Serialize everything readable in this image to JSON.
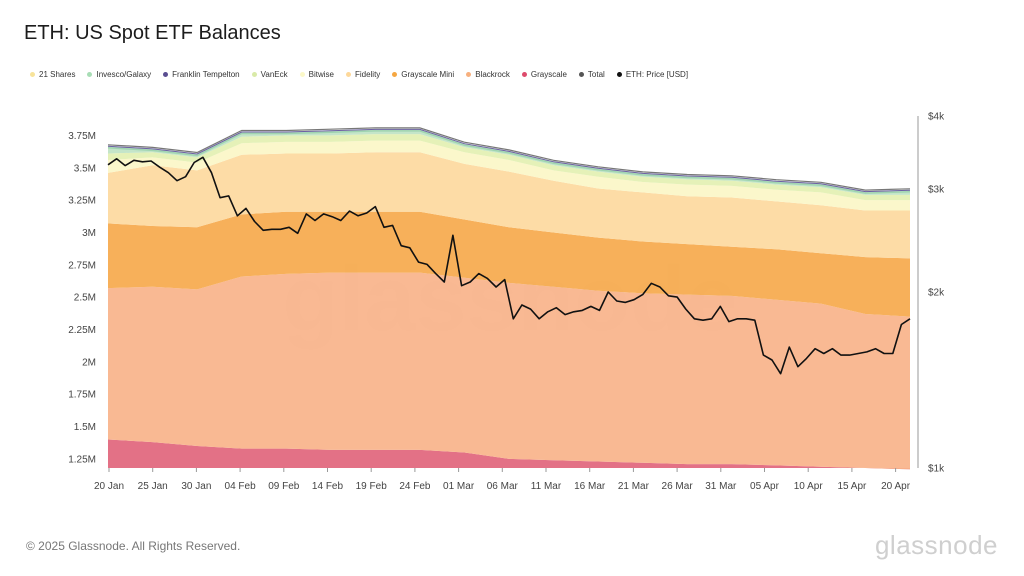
{
  "title": "ETH: US Spot ETF Balances",
  "footer": {
    "copyright": "© 2025 Glassnode. All Rights Reserved.",
    "brand": "glassnode",
    "watermark": "glassnode"
  },
  "legend": [
    {
      "label": "21 Shares",
      "color": "#f7e39a"
    },
    {
      "label": "Invesco/Galaxy",
      "color": "#a8ddb5"
    },
    {
      "label": "Franklin Tempelton",
      "color": "#5a4e91"
    },
    {
      "label": "VanEck",
      "color": "#d9eaa8"
    },
    {
      "label": "Bitwise",
      "color": "#fbf8c8"
    },
    {
      "label": "Fidelity",
      "color": "#fdd89a"
    },
    {
      "label": "Grayscale Mini",
      "color": "#f5a742"
    },
    {
      "label": "Blackrock",
      "color": "#f7b07e"
    },
    {
      "label": "Grayscale",
      "color": "#dd4b6c"
    },
    {
      "label": "Total",
      "color": "#555555"
    },
    {
      "label": "ETH: Price [USD]",
      "color": "#111111"
    }
  ],
  "chart_data": {
    "type": "area",
    "title": "ETH: US Spot ETF Balances",
    "x_labels": [
      "20 Jan",
      "25 Jan",
      "30 Jan",
      "04 Feb",
      "09 Feb",
      "14 Feb",
      "19 Feb",
      "24 Feb",
      "01 Mar",
      "06 Mar",
      "11 Mar",
      "16 Mar",
      "21 Mar",
      "26 Mar",
      "31 Mar",
      "05 Apr",
      "10 Apr",
      "15 Apr",
      "20 Apr"
    ],
    "y_left": {
      "ticks": [
        "1.25M",
        "1.5M",
        "1.75M",
        "2M",
        "2.25M",
        "2.5M",
        "2.75M",
        "3M",
        "3.25M",
        "3.5M",
        "3.75M"
      ],
      "min": 1.18,
      "max": 3.9,
      "unit": "M ETH"
    },
    "y_right": {
      "ticks": [
        "$1k",
        "$2k",
        "$3k",
        "$4k"
      ],
      "scale": "log",
      "min": 1000,
      "max": 4000
    },
    "keyframes": [
      {
        "date": "20 Jan",
        "grayscale": 1.4,
        "blackrock": 2.57,
        "grayscale_mini": 3.07,
        "fidelity": 3.46,
        "bitwise": 3.56,
        "vaneck": 3.61,
        "total": 3.67
      },
      {
        "date": "25 Jan",
        "grayscale": 1.38,
        "blackrock": 2.58,
        "grayscale_mini": 3.05,
        "fidelity": 3.52,
        "bitwise": 3.58,
        "vaneck": 3.62,
        "total": 3.65
      },
      {
        "date": "30 Jan",
        "grayscale": 1.35,
        "blackrock": 2.56,
        "grayscale_mini": 3.04,
        "fidelity": 3.48,
        "bitwise": 3.54,
        "vaneck": 3.58,
        "total": 3.61
      },
      {
        "date": "04 Feb",
        "grayscale": 1.33,
        "blackrock": 2.66,
        "grayscale_mini": 3.14,
        "fidelity": 3.6,
        "bitwise": 3.69,
        "vaneck": 3.74,
        "total": 3.78
      },
      {
        "date": "09 Feb",
        "grayscale": 1.33,
        "blackrock": 2.68,
        "grayscale_mini": 3.16,
        "fidelity": 3.61,
        "bitwise": 3.7,
        "vaneck": 3.75,
        "total": 3.78
      },
      {
        "date": "14 Feb",
        "grayscale": 1.32,
        "blackrock": 2.69,
        "grayscale_mini": 3.16,
        "fidelity": 3.61,
        "bitwise": 3.7,
        "vaneck": 3.75,
        "total": 3.79
      },
      {
        "date": "19 Feb",
        "grayscale": 1.32,
        "blackrock": 2.69,
        "grayscale_mini": 3.16,
        "fidelity": 3.62,
        "bitwise": 3.71,
        "vaneck": 3.76,
        "total": 3.8
      },
      {
        "date": "24 Feb",
        "grayscale": 1.32,
        "blackrock": 2.69,
        "grayscale_mini": 3.16,
        "fidelity": 3.62,
        "bitwise": 3.71,
        "vaneck": 3.76,
        "total": 3.8
      },
      {
        "date": "01 Mar",
        "grayscale": 1.3,
        "blackrock": 2.65,
        "grayscale_mini": 3.1,
        "fidelity": 3.53,
        "bitwise": 3.62,
        "vaneck": 3.66,
        "total": 3.69
      },
      {
        "date": "06 Mar",
        "grayscale": 1.25,
        "blackrock": 2.61,
        "grayscale_mini": 3.04,
        "fidelity": 3.47,
        "bitwise": 3.56,
        "vaneck": 3.6,
        "total": 3.63
      },
      {
        "date": "11 Mar",
        "grayscale": 1.24,
        "blackrock": 2.58,
        "grayscale_mini": 3.0,
        "fidelity": 3.4,
        "bitwise": 3.48,
        "vaneck": 3.52,
        "total": 3.55
      },
      {
        "date": "16 Mar",
        "grayscale": 1.23,
        "blackrock": 2.55,
        "grayscale_mini": 2.96,
        "fidelity": 3.34,
        "bitwise": 3.43,
        "vaneck": 3.47,
        "total": 3.5
      },
      {
        "date": "21 Mar",
        "grayscale": 1.22,
        "blackrock": 2.53,
        "grayscale_mini": 2.93,
        "fidelity": 3.31,
        "bitwise": 3.39,
        "vaneck": 3.43,
        "total": 3.46
      },
      {
        "date": "26 Mar",
        "grayscale": 1.21,
        "blackrock": 2.52,
        "grayscale_mini": 2.91,
        "fidelity": 3.28,
        "bitwise": 3.37,
        "vaneck": 3.41,
        "total": 3.44
      },
      {
        "date": "31 Mar",
        "grayscale": 1.21,
        "blackrock": 2.51,
        "grayscale_mini": 2.89,
        "fidelity": 3.27,
        "bitwise": 3.36,
        "vaneck": 3.4,
        "total": 3.43
      },
      {
        "date": "05 Apr",
        "grayscale": 1.2,
        "blackrock": 2.48,
        "grayscale_mini": 2.87,
        "fidelity": 3.24,
        "bitwise": 3.33,
        "vaneck": 3.37,
        "total": 3.4
      },
      {
        "date": "10 Apr",
        "grayscale": 1.19,
        "blackrock": 2.45,
        "grayscale_mini": 2.84,
        "fidelity": 3.21,
        "bitwise": 3.31,
        "vaneck": 3.35,
        "total": 3.38
      },
      {
        "date": "15 Apr",
        "grayscale": 1.18,
        "blackrock": 2.37,
        "grayscale_mini": 2.81,
        "fidelity": 3.17,
        "bitwise": 3.25,
        "vaneck": 3.29,
        "total": 3.32
      },
      {
        "date": "20 Apr",
        "grayscale": 1.17,
        "blackrock": 2.35,
        "grayscale_mini": 2.8,
        "fidelity": 3.17,
        "bitwise": 3.25,
        "vaneck": 3.29,
        "total": 3.33
      }
    ],
    "price": [
      3300,
      3380,
      3290,
      3360,
      3340,
      3350,
      3270,
      3200,
      3100,
      3150,
      3330,
      3400,
      3200,
      2900,
      2920,
      2700,
      2780,
      2640,
      2550,
      2560,
      2560,
      2580,
      2520,
      2720,
      2650,
      2720,
      2690,
      2650,
      2750,
      2700,
      2730,
      2800,
      2580,
      2600,
      2400,
      2380,
      2250,
      2230,
      2150,
      2080,
      2500,
      2050,
      2080,
      2150,
      2110,
      2040,
      2100,
      1800,
      1900,
      1870,
      1800,
      1850,
      1880,
      1830,
      1850,
      1860,
      1890,
      1860,
      2000,
      1930,
      1920,
      1940,
      1980,
      2070,
      2040,
      1970,
      1960,
      1870,
      1800,
      1790,
      1800,
      1890,
      1780,
      1800,
      1800,
      1790,
      1560,
      1530,
      1450,
      1610,
      1490,
      1540,
      1600,
      1570,
      1600,
      1560,
      1560,
      1570,
      1580,
      1600,
      1570,
      1570,
      1760,
      1800
    ]
  }
}
